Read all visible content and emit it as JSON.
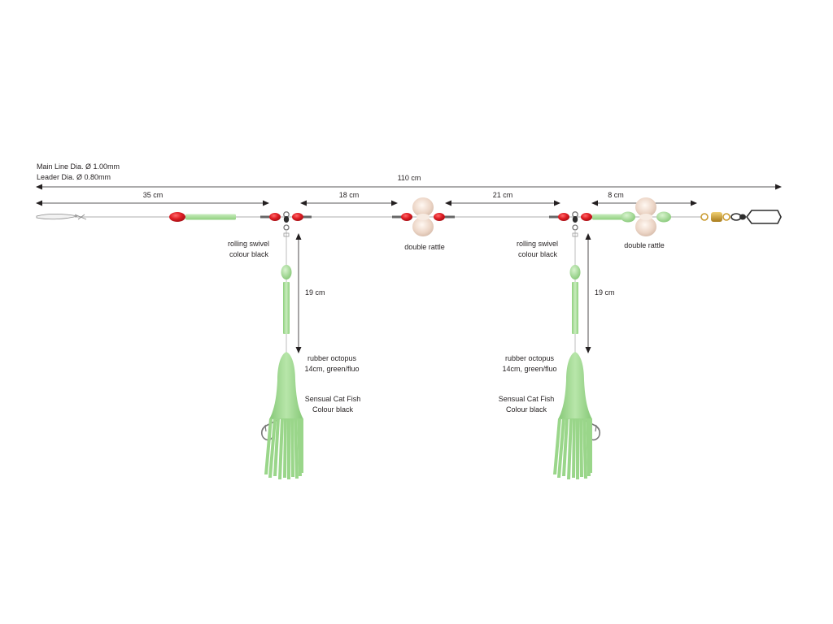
{
  "specs": {
    "main_line": "Main Line Dia. Ø 1.00mm",
    "leader": "Leader Dia. Ø 0.80mm"
  },
  "dimensions": {
    "total": "110 cm",
    "seg_a": "35 cm",
    "seg_b": "18 cm",
    "seg_c": "21 cm",
    "seg_d": "8 cm",
    "drop_left": "19 cm",
    "drop_right": "19 cm"
  },
  "labels": {
    "left_swivel_line1": "rolling swivel",
    "left_swivel_line2": "colour black",
    "right_swivel_line1": "rolling swivel",
    "right_swivel_line2": "colour black",
    "rattle_center": "double rattle",
    "rattle_right": "double rattle",
    "left_octopus_line1": "rubber octopus",
    "left_octopus_line2": "14cm, green/fluo",
    "left_hook_line1": "Sensual Cat Fish",
    "left_hook_line2": "Colour black",
    "right_octopus_line1": "rubber octopus",
    "right_octopus_line2": "14cm, green/fluo",
    "right_hook_line1": "Sensual Cat Fish",
    "right_hook_line2": "Colour black"
  },
  "colors": {
    "bead_red": "#e01e25",
    "tube_green": "#a8dc9a",
    "octopus_green": "#9ad68a",
    "rattle_beige": "#ecd5c6",
    "swivel_black": "#2d2d2d",
    "brass": "#c99a2e",
    "line": "#c8c8c8",
    "text": "#231f20"
  }
}
